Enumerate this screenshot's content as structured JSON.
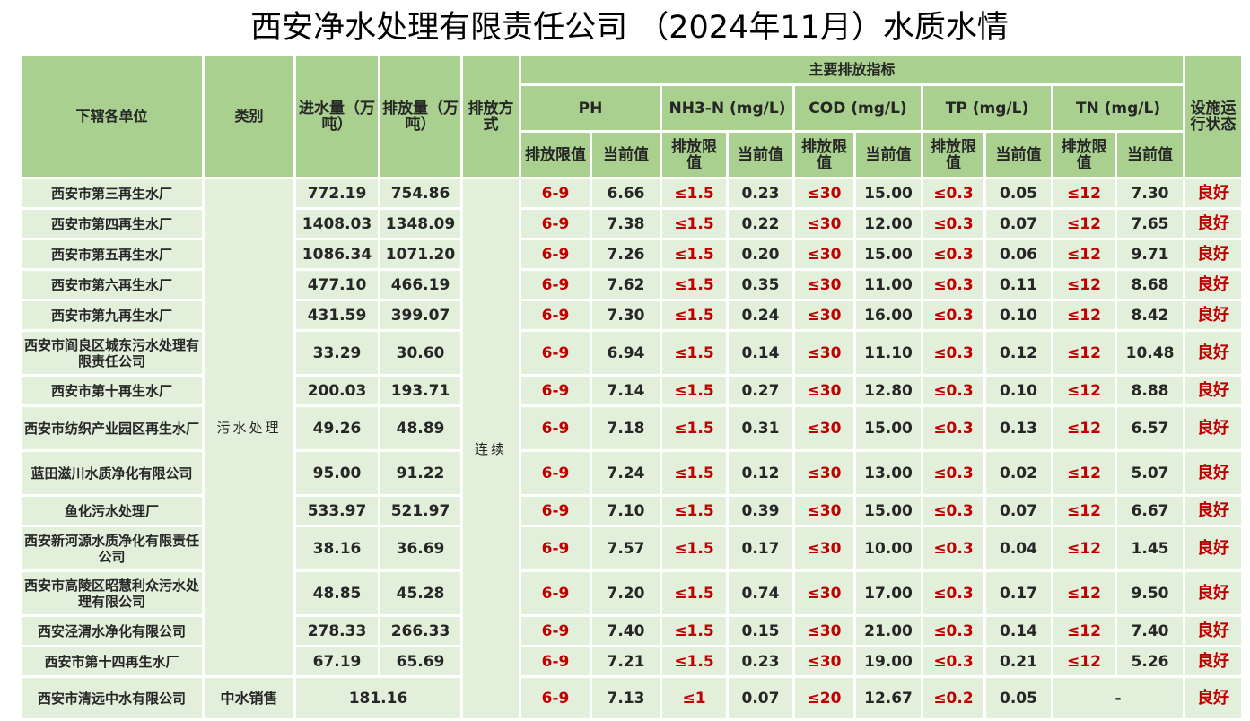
{
  "title": "西安净水处理有限责任公司 （2024年11月）水质水情",
  "colors": {
    "header_bg": "#a9d08e",
    "row_bg": "#e2efda",
    "limit_text": "#c00000",
    "text": "#262626"
  },
  "headers": {
    "unit": "下辖各单位",
    "category": "类别",
    "inflow": "进水量（万吨）",
    "discharge": "排放量（万吨）",
    "mode": "排放方式",
    "main_indicators": "主要排放指标",
    "ph": "PH",
    "nh3n": "NH3-N (mg/L)",
    "cod": "COD (mg/L)",
    "tp": "TP (mg/L)",
    "tn": "TN (mg/L)",
    "limit": "排放限值",
    "current": "当前值",
    "status": "设施运行状态"
  },
  "category_sewage": "污水处理",
  "category_reclaimed": "中水销售",
  "discharge_mode": "连续",
  "rows": [
    {
      "unit": "西安市第三再生水厂",
      "inflow": "772.19",
      "discharge": "754.86",
      "ph_lim": "6-9",
      "ph": "6.66",
      "nh3_lim": "≤1.5",
      "nh3": "0.23",
      "cod_lim": "≤30",
      "cod": "15.00",
      "tp_lim": "≤0.3",
      "tp": "0.05",
      "tn_lim": "≤12",
      "tn": "7.30",
      "status": "良好"
    },
    {
      "unit": "西安市第四再生水厂",
      "inflow": "1408.03",
      "discharge": "1348.09",
      "ph_lim": "6-9",
      "ph": "7.38",
      "nh3_lim": "≤1.5",
      "nh3": "0.22",
      "cod_lim": "≤30",
      "cod": "12.00",
      "tp_lim": "≤0.3",
      "tp": "0.07",
      "tn_lim": "≤12",
      "tn": "7.65",
      "status": "良好"
    },
    {
      "unit": "西安市第五再生水厂",
      "inflow": "1086.34",
      "discharge": "1071.20",
      "ph_lim": "6-9",
      "ph": "7.26",
      "nh3_lim": "≤1.5",
      "nh3": "0.20",
      "cod_lim": "≤30",
      "cod": "15.00",
      "tp_lim": "≤0.3",
      "tp": "0.06",
      "tn_lim": "≤12",
      "tn": "9.71",
      "status": "良好"
    },
    {
      "unit": "西安市第六再生水厂",
      "inflow": "477.10",
      "discharge": "466.19",
      "ph_lim": "6-9",
      "ph": "7.62",
      "nh3_lim": "≤1.5",
      "nh3": "0.35",
      "cod_lim": "≤30",
      "cod": "11.00",
      "tp_lim": "≤0.3",
      "tp": "0.11",
      "tn_lim": "≤12",
      "tn": "8.68",
      "status": "良好"
    },
    {
      "unit": "西安市第九再生水厂",
      "inflow": "431.59",
      "discharge": "399.07",
      "ph_lim": "6-9",
      "ph": "7.30",
      "nh3_lim": "≤1.5",
      "nh3": "0.24",
      "cod_lim": "≤30",
      "cod": "16.00",
      "tp_lim": "≤0.3",
      "tp": "0.10",
      "tn_lim": "≤12",
      "tn": "8.42",
      "status": "良好"
    },
    {
      "unit": "西安市阎良区城东污水处理有限责任公司",
      "inflow": "33.29",
      "discharge": "30.60",
      "ph_lim": "6-9",
      "ph": "6.94",
      "nh3_lim": "≤1.5",
      "nh3": "0.14",
      "cod_lim": "≤30",
      "cod": "11.10",
      "tp_lim": "≤0.3",
      "tp": "0.12",
      "tn_lim": "≤12",
      "tn": "10.48",
      "status": "良好"
    },
    {
      "unit": "西安市第十再生水厂",
      "inflow": "200.03",
      "discharge": "193.71",
      "ph_lim": "6-9",
      "ph": "7.14",
      "nh3_lim": "≤1.5",
      "nh3": "0.27",
      "cod_lim": "≤30",
      "cod": "12.80",
      "tp_lim": "≤0.3",
      "tp": "0.10",
      "tn_lim": "≤12",
      "tn": "8.88",
      "status": "良好"
    },
    {
      "unit": "西安市纺织产业园区再生水厂",
      "inflow": "49.26",
      "discharge": "48.89",
      "ph_lim": "6-9",
      "ph": "7.18",
      "nh3_lim": "≤1.5",
      "nh3": "0.31",
      "cod_lim": "≤30",
      "cod": "15.00",
      "tp_lim": "≤0.3",
      "tp": "0.13",
      "tn_lim": "≤12",
      "tn": "6.57",
      "status": "良好"
    },
    {
      "unit": "蓝田滋川水质净化有限公司",
      "inflow": "95.00",
      "discharge": "91.22",
      "ph_lim": "6-9",
      "ph": "7.24",
      "nh3_lim": "≤1.5",
      "nh3": "0.12",
      "cod_lim": "≤30",
      "cod": "13.00",
      "tp_lim": "≤0.3",
      "tp": "0.02",
      "tn_lim": "≤12",
      "tn": "5.07",
      "status": "良好"
    },
    {
      "unit": "鱼化污水处理厂",
      "inflow": "533.97",
      "discharge": "521.97",
      "ph_lim": "6-9",
      "ph": "7.10",
      "nh3_lim": "≤1.5",
      "nh3": "0.39",
      "cod_lim": "≤30",
      "cod": "15.00",
      "tp_lim": "≤0.3",
      "tp": "0.07",
      "tn_lim": "≤12",
      "tn": "6.67",
      "status": "良好"
    },
    {
      "unit": "西安新河源水质净化有限责任公司",
      "inflow": "38.16",
      "discharge": "36.69",
      "ph_lim": "6-9",
      "ph": "7.57",
      "nh3_lim": "≤1.5",
      "nh3": "0.17",
      "cod_lim": "≤30",
      "cod": "10.00",
      "tp_lim": "≤0.3",
      "tp": "0.04",
      "tn_lim": "≤12",
      "tn": "1.45",
      "status": "良好"
    },
    {
      "unit": "西安市高陵区昭慧利众污水处理有限公司",
      "inflow": "48.85",
      "discharge": "45.28",
      "ph_lim": "6-9",
      "ph": "7.20",
      "nh3_lim": "≤1.5",
      "nh3": "0.74",
      "cod_lim": "≤30",
      "cod": "17.00",
      "tp_lim": "≤0.3",
      "tp": "0.17",
      "tn_lim": "≤12",
      "tn": "9.50",
      "status": "良好"
    },
    {
      "unit": "西安泾渭水净化有限公司",
      "inflow": "278.33",
      "discharge": "266.33",
      "ph_lim": "6-9",
      "ph": "7.40",
      "nh3_lim": "≤1.5",
      "nh3": "0.15",
      "cod_lim": "≤30",
      "cod": "21.00",
      "tp_lim": "≤0.3",
      "tp": "0.14",
      "tn_lim": "≤12",
      "tn": "7.40",
      "status": "良好"
    },
    {
      "unit": "西安市第十四再生水厂",
      "inflow": "67.19",
      "discharge": "65.69",
      "ph_lim": "6-9",
      "ph": "7.21",
      "nh3_lim": "≤1.5",
      "nh3": "0.23",
      "cod_lim": "≤30",
      "cod": "19.00",
      "tp_lim": "≤0.3",
      "tp": "0.21",
      "tn_lim": "≤12",
      "tn": "5.26",
      "status": "良好"
    }
  ],
  "last_row": {
    "unit": "西安市清远中水有限公司",
    "volume": "181.16",
    "ph_lim": "6-9",
    "ph": "7.13",
    "nh3_lim": "≤1",
    "nh3": "0.07",
    "cod_lim": "≤20",
    "cod": "12.67",
    "tp_lim": "≤0.2",
    "tp": "0.05",
    "tn": "-",
    "status": "良好"
  },
  "chart_data": {
    "type": "table",
    "title": "西安净水处理有限责任公司 （2024年11月）水质水情",
    "columns": [
      "下辖各单位",
      "类别",
      "进水量（万吨）",
      "排放量（万吨）",
      "排放方式",
      "PH 排放限值",
      "PH 当前值",
      "NH3-N 排放限值",
      "NH3-N 当前值",
      "COD 排放限值",
      "COD 当前值",
      "TP 排放限值",
      "TP 当前值",
      "TN 排放限值",
      "TN 当前值",
      "设施运行状态"
    ],
    "rows": [
      [
        "西安市第三再生水厂",
        "污水处理",
        772.19,
        754.86,
        "连续",
        "6-9",
        6.66,
        "≤1.5",
        0.23,
        "≤30",
        15.0,
        "≤0.3",
        0.05,
        "≤12",
        7.3,
        "良好"
      ],
      [
        "西安市第四再生水厂",
        "污水处理",
        1408.03,
        1348.09,
        "连续",
        "6-9",
        7.38,
        "≤1.5",
        0.22,
        "≤30",
        12.0,
        "≤0.3",
        0.07,
        "≤12",
        7.65,
        "良好"
      ],
      [
        "西安市第五再生水厂",
        "污水处理",
        1086.34,
        1071.2,
        "连续",
        "6-9",
        7.26,
        "≤1.5",
        0.2,
        "≤30",
        15.0,
        "≤0.3",
        0.06,
        "≤12",
        9.71,
        "良好"
      ],
      [
        "西安市第六再生水厂",
        "污水处理",
        477.1,
        466.19,
        "连续",
        "6-9",
        7.62,
        "≤1.5",
        0.35,
        "≤30",
        11.0,
        "≤0.3",
        0.11,
        "≤12",
        8.68,
        "良好"
      ],
      [
        "西安市第九再生水厂",
        "污水处理",
        431.59,
        399.07,
        "连续",
        "6-9",
        7.3,
        "≤1.5",
        0.24,
        "≤30",
        16.0,
        "≤0.3",
        0.1,
        "≤12",
        8.42,
        "良好"
      ],
      [
        "西安市阎良区城东污水处理有限责任公司",
        "污水处理",
        33.29,
        30.6,
        "连续",
        "6-9",
        6.94,
        "≤1.5",
        0.14,
        "≤30",
        11.1,
        "≤0.3",
        0.12,
        "≤12",
        10.48,
        "良好"
      ],
      [
        "西安市第十再生水厂",
        "污水处理",
        200.03,
        193.71,
        "连续",
        "6-9",
        7.14,
        "≤1.5",
        0.27,
        "≤30",
        12.8,
        "≤0.3",
        0.1,
        "≤12",
        8.88,
        "良好"
      ],
      [
        "西安市纺织产业园区再生水厂",
        "污水处理",
        49.26,
        48.89,
        "连续",
        "6-9",
        7.18,
        "≤1.5",
        0.31,
        "≤30",
        15.0,
        "≤0.3",
        0.13,
        "≤12",
        6.57,
        "良好"
      ],
      [
        "蓝田滋川水质净化有限公司",
        "污水处理",
        95.0,
        91.22,
        "连续",
        "6-9",
        7.24,
        "≤1.5",
        0.12,
        "≤30",
        13.0,
        "≤0.3",
        0.02,
        "≤12",
        5.07,
        "良好"
      ],
      [
        "鱼化污水处理厂",
        "污水处理",
        533.97,
        521.97,
        "连续",
        "6-9",
        7.1,
        "≤1.5",
        0.39,
        "≤30",
        15.0,
        "≤0.3",
        0.07,
        "≤12",
        6.67,
        "良好"
      ],
      [
        "西安新河源水质净化有限责任公司",
        "污水处理",
        38.16,
        36.69,
        "连续",
        "6-9",
        7.57,
        "≤1.5",
        0.17,
        "≤30",
        10.0,
        "≤0.3",
        0.04,
        "≤12",
        1.45,
        "良好"
      ],
      [
        "西安市高陵区昭慧利众污水处理有限公司",
        "污水处理",
        48.85,
        45.28,
        "连续",
        "6-9",
        7.2,
        "≤1.5",
        0.74,
        "≤30",
        17.0,
        "≤0.3",
        0.17,
        "≤12",
        9.5,
        "良好"
      ],
      [
        "西安泾渭水净化有限公司",
        "污水处理",
        278.33,
        266.33,
        "连续",
        "6-9",
        7.4,
        "≤1.5",
        0.15,
        "≤30",
        21.0,
        "≤0.3",
        0.14,
        "≤12",
        7.4,
        "良好"
      ],
      [
        "西安市第十四再生水厂",
        "污水处理",
        67.19,
        65.69,
        "连续",
        "6-9",
        7.21,
        "≤1.5",
        0.23,
        "≤30",
        19.0,
        "≤0.3",
        0.21,
        "≤12",
        5.26,
        "良好"
      ],
      [
        "西安市清远中水有限公司",
        "中水销售",
        181.16,
        null,
        "连续",
        "6-9",
        7.13,
        "≤1",
        0.07,
        "≤20",
        12.67,
        "≤0.2",
        0.05,
        "-",
        null,
        "良好"
      ]
    ]
  }
}
